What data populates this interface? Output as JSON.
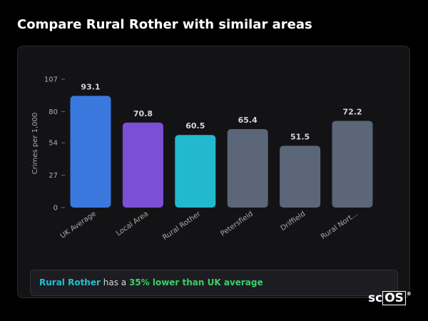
{
  "page": {
    "title": "Compare Rural Rother with similar areas"
  },
  "chart_data": {
    "type": "bar",
    "ylabel": "Crimes per 1,000",
    "xlabel": "",
    "ylim": [
      0,
      107
    ],
    "yticks": [
      0,
      27,
      54,
      80,
      107
    ],
    "grid": false,
    "categories": [
      "UK Average",
      "Local Area",
      "Rural Rother",
      "Petersfield",
      "Driffield",
      "Rural Nort..."
    ],
    "values": [
      93.1,
      70.8,
      60.5,
      65.4,
      51.5,
      72.2
    ],
    "value_labels": [
      "93.1",
      "70.8",
      "60.5",
      "65.4",
      "51.5",
      "72.2"
    ],
    "colors": [
      "#3a78dd",
      "#7d4fd6",
      "#22b9cf",
      "#5b6678",
      "#5b6678",
      "#5b6678"
    ]
  },
  "summary": {
    "area": "Rural Rother",
    "middle": " has a ",
    "difference": "35% lower than UK average"
  },
  "logo": {
    "prefix": "sc",
    "boxed": "OS",
    "mark": "®"
  }
}
